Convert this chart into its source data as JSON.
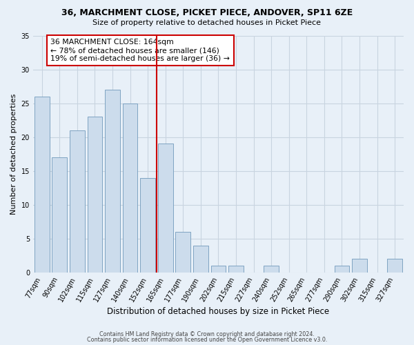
{
  "title_line1": "36, MARCHMENT CLOSE, PICKET PIECE, ANDOVER, SP11 6ZE",
  "title_line2": "Size of property relative to detached houses in Picket Piece",
  "xlabel": "Distribution of detached houses by size in Picket Piece",
  "ylabel": "Number of detached properties",
  "bin_labels": [
    "77sqm",
    "90sqm",
    "102sqm",
    "115sqm",
    "127sqm",
    "140sqm",
    "152sqm",
    "165sqm",
    "177sqm",
    "190sqm",
    "202sqm",
    "215sqm",
    "227sqm",
    "240sqm",
    "252sqm",
    "265sqm",
    "277sqm",
    "290sqm",
    "302sqm",
    "315sqm",
    "327sqm"
  ],
  "counts": [
    26,
    17,
    21,
    23,
    27,
    25,
    14,
    19,
    6,
    4,
    1,
    1,
    0,
    1,
    0,
    0,
    0,
    1,
    2,
    0,
    2
  ],
  "bar_color": "#ccdcec",
  "bar_edge_color": "#7099bb",
  "reference_line_index": 7,
  "reference_line_color": "#cc0000",
  "annotation_text": "36 MARCHMENT CLOSE: 164sqm\n← 78% of detached houses are smaller (146)\n19% of semi-detached houses are larger (36) →",
  "annotation_box_edge_color": "#cc0000",
  "annotation_box_face_color": "white",
  "ylim": [
    0,
    35
  ],
  "yticks": [
    0,
    5,
    10,
    15,
    20,
    25,
    30,
    35
  ],
  "grid_color": "#c8d4e0",
  "background_color": "#e8f0f8",
  "footer_line1": "Contains HM Land Registry data © Crown copyright and database right 2024.",
  "footer_line2": "Contains public sector information licensed under the Open Government Licence v3.0."
}
